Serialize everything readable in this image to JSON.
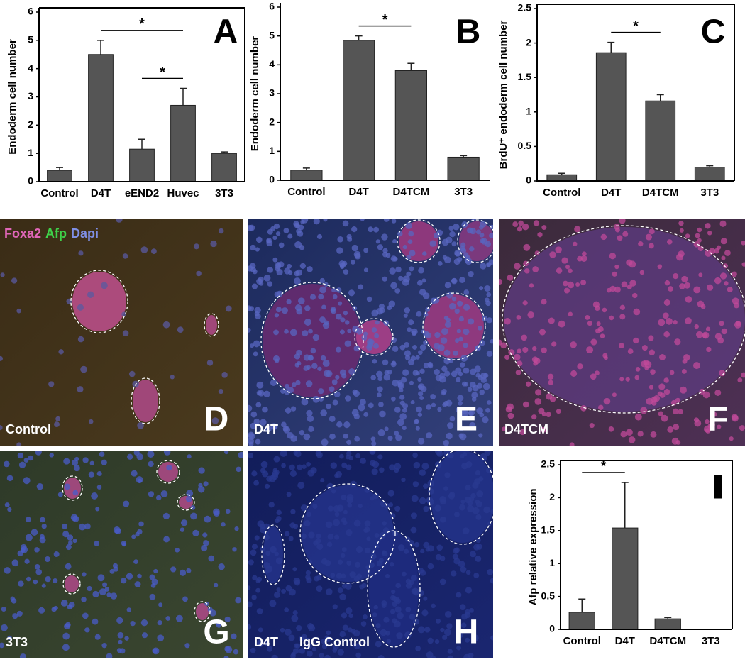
{
  "chart_data": [
    {
      "type": "bar",
      "panel": "A",
      "ylabel": "Endoderm cell number",
      "categories": [
        "Control",
        "D4T",
        "eEND2",
        "Huvec",
        "3T3"
      ],
      "values": [
        0.4,
        4.5,
        1.15,
        2.7,
        1.0
      ],
      "errors": [
        0.1,
        0.5,
        0.35,
        0.6,
        0.05
      ],
      "color": "#555555",
      "ylim": [
        0,
        6
      ],
      "yticks": [
        0,
        1,
        2,
        3,
        4,
        5,
        6
      ],
      "frame": true,
      "annotations": [
        {
          "text": "*",
          "from": "D4T",
          "to": "Huvec"
        },
        {
          "text": "*",
          "from": "eEND2",
          "to": "Huvec"
        }
      ]
    },
    {
      "type": "bar",
      "panel": "B",
      "ylabel": "Endoderm cell number",
      "categories": [
        "Control",
        "D4T",
        "D4TCM",
        "3T3"
      ],
      "values": [
        0.35,
        4.85,
        3.8,
        0.8
      ],
      "errors": [
        0.07,
        0.15,
        0.25,
        0.05
      ],
      "color": "#555555",
      "ylim": [
        0,
        6
      ],
      "yticks": [
        0,
        1,
        2,
        3,
        4,
        5,
        6
      ],
      "frame": false,
      "annotations": [
        {
          "text": "*",
          "from": "D4T",
          "to": "D4TCM"
        }
      ]
    },
    {
      "type": "bar",
      "panel": "C",
      "ylabel": "BrdU⁺ endoderm cell number",
      "categories": [
        "Control",
        "D4T",
        "D4TCM",
        "3T3"
      ],
      "values": [
        0.09,
        1.86,
        1.16,
        0.2
      ],
      "errors": [
        0.02,
        0.15,
        0.09,
        0.02
      ],
      "color": "#555555",
      "ylim": [
        0,
        2.5
      ],
      "yticks": [
        0,
        0.5,
        1,
        1.5,
        2,
        2.5
      ],
      "frame": true,
      "annotations": [
        {
          "text": "*",
          "from": "D4T",
          "to": "D4TCM"
        }
      ]
    },
    {
      "type": "bar",
      "panel": "I",
      "ylabel": "Afp relative expression",
      "categories": [
        "Control",
        "D4T",
        "D4TCM",
        "3T3"
      ],
      "values": [
        0.26,
        1.54,
        0.16,
        0
      ],
      "errors": [
        0.2,
        0.69,
        0.02,
        0
      ],
      "color": "#555555",
      "ylim": [
        0,
        2.5
      ],
      "yticks": [
        0,
        0.5,
        1,
        1.5,
        2,
        2.5
      ],
      "frame": true,
      "annotations": [
        {
          "text": "*",
          "from": "Control",
          "to": "D4T"
        }
      ]
    }
  ],
  "panels": [
    {
      "letter": "D",
      "captions": [
        "Control"
      ],
      "stains": [
        {
          "name": "Foxa2",
          "color": "#e066b8"
        },
        {
          "name": "Afp",
          "color": "#3fd24a"
        },
        {
          "name": "Dapi",
          "color": "#7f8fe6"
        }
      ]
    },
    {
      "letter": "E",
      "captions": [
        "D4T"
      ]
    },
    {
      "letter": "F",
      "captions": [
        "D4TCM"
      ]
    },
    {
      "letter": "G",
      "captions": [
        "3T3"
      ]
    },
    {
      "letter": "H",
      "captions": [
        "D4T",
        "IgG Control"
      ]
    }
  ]
}
